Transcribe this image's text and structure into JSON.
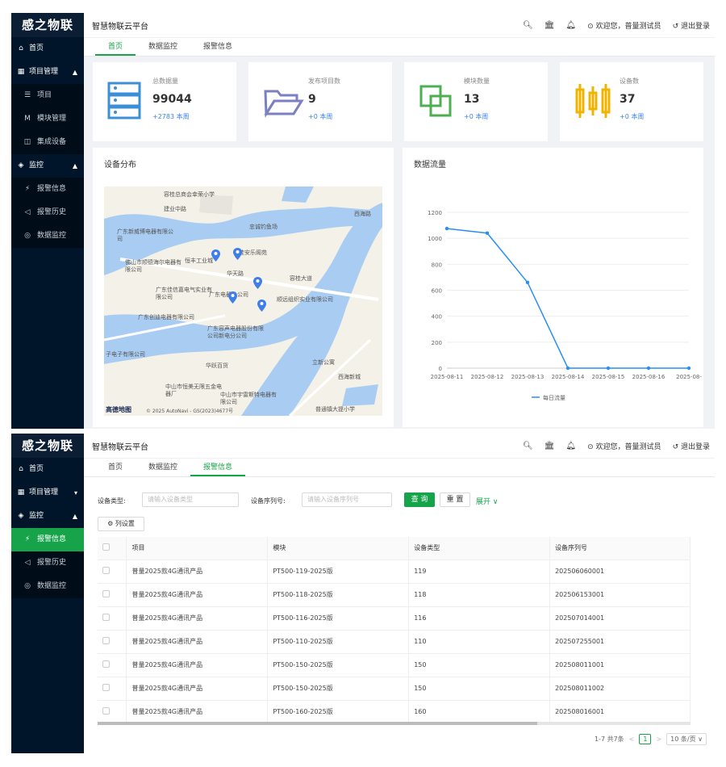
{
  "brand": "感之物联",
  "platform_title": "智慧物联云平台",
  "header": {
    "welcome": "欢迎您，普量测试员",
    "logout": "退出登录"
  },
  "menu1": [
    {
      "label": "首页",
      "icon": "⌂",
      "type": "top"
    },
    {
      "label": "项目管理",
      "icon": "▦",
      "type": "top",
      "arrow": "▲"
    },
    {
      "label": "项目",
      "icon": "☰",
      "type": "sub"
    },
    {
      "label": "模块管理",
      "icon": "M",
      "type": "sub"
    },
    {
      "label": "集成设备",
      "icon": "◫",
      "type": "sub"
    },
    {
      "label": "监控",
      "icon": "◈",
      "type": "top",
      "arrow": "▲"
    },
    {
      "label": "报警信息",
      "icon": "⚡",
      "type": "sub"
    },
    {
      "label": "报警历史",
      "icon": "◁",
      "type": "sub"
    },
    {
      "label": "数据监控",
      "icon": "◎",
      "type": "sub"
    }
  ],
  "menu2": [
    {
      "label": "首页",
      "icon": "⌂",
      "type": "top"
    },
    {
      "label": "项目管理",
      "icon": "▦",
      "type": "top",
      "arrow": "▾"
    },
    {
      "label": "监控",
      "icon": "◈",
      "type": "top",
      "arrow": "▲"
    },
    {
      "label": "报警信息",
      "icon": "⚡",
      "type": "sub",
      "active": true
    },
    {
      "label": "报警历史",
      "icon": "◁",
      "type": "sub"
    },
    {
      "label": "数据监控",
      "icon": "◎",
      "type": "sub"
    }
  ],
  "tabs": [
    "首页",
    "数据监控",
    "报警信息"
  ],
  "stats": [
    {
      "label": "总数据量",
      "value": "99044",
      "delta": "+2783 本周",
      "color": "#3b8fd6",
      "icon": "server-icon"
    },
    {
      "label": "发布项目数",
      "value": "9",
      "delta": "+0 本周",
      "color": "#7b7fc4",
      "icon": "folder-icon"
    },
    {
      "label": "模块数量",
      "value": "13",
      "delta": "+0 本周",
      "color": "#4caf50",
      "icon": "module-icon"
    },
    {
      "label": "设备数",
      "value": "37",
      "delta": "+0 本周",
      "color": "#f0b400",
      "icon": "device-icon"
    }
  ],
  "map_card": {
    "title": "设备分布",
    "attribution": "© 2025 AutoNavi - GS(2023)4677号",
    "brand": "高德地图"
  },
  "map_labels": [
    "容桂总商会幸荣小学",
    "建业中路",
    "广东新威博电器有限公司",
    "忠诚钓鱼场",
    "容桂安乐阁苑",
    "恒丰工业城",
    "佛山市顺德海尔电器有限公司",
    "华天路",
    "广东佳信嘉电气实业有限公司",
    "广东电器分公司",
    "顺远组织实业有限公司",
    "广东创迪电器有限公司",
    "广东容声电器股份有限公司新电分公司",
    "子电子有限公司",
    "华跃百货",
    "立新公寓",
    "中山市恒美无限五金电器厂",
    "中山市宇雷斯特电器有限公司",
    "普通镇大提小学",
    "容桂大道",
    "西海路",
    "西海新城"
  ],
  "flow_card": {
    "title": "数据流量",
    "legend": "每日流量"
  },
  "chart_data": {
    "type": "line",
    "categories": [
      "2025-08-11",
      "2025-08-12",
      "2025-08-13",
      "2025-08-14",
      "2025-08-15",
      "2025-08-16",
      "2025-08-"
    ],
    "series": [
      {
        "name": "每日流量",
        "values": [
          1075,
          1040,
          660,
          0,
          0,
          0,
          0
        ]
      }
    ],
    "ylim": [
      0,
      1200
    ],
    "yticks": [
      0,
      200,
      400,
      600,
      800,
      1000,
      1200
    ],
    "color": "#2b8ef0"
  },
  "filter": {
    "type_label": "设备类型:",
    "type_placeholder": "请输入设备类型",
    "serial_label": "设备序列号:",
    "serial_placeholder": "请输入设备序列号",
    "query": "查 询",
    "reset": "重 置",
    "expand": "展开 ∨",
    "col_settings": "列设置"
  },
  "table": {
    "headers": [
      "项目",
      "模块",
      "设备类型",
      "设备序列号"
    ],
    "rows": [
      [
        "普量2025款4G通讯产品",
        "PT500-119-2025版",
        "119",
        "202506060001"
      ],
      [
        "普量2025款4G通讯产品",
        "PT500-118-2025版",
        "118",
        "202506153001"
      ],
      [
        "普量2025款4G通讯产品",
        "PT500-116-2025版",
        "116",
        "202507014001"
      ],
      [
        "普量2025款4G通讯产品",
        "PT500-110-2025版",
        "110",
        "202507255001"
      ],
      [
        "普量2025款4G通讯产品",
        "PT500-150-2025版",
        "150",
        "202508011001"
      ],
      [
        "普量2025款4G通讯产品",
        "PT500-150-2025版",
        "150",
        "202508011002"
      ],
      [
        "普量2025款4G通讯产品",
        "PT500-160-2025版",
        "160",
        "202508016001"
      ]
    ]
  },
  "pagination": {
    "summary": "1-7 共7条",
    "page": "1",
    "size": "10 条/页"
  }
}
